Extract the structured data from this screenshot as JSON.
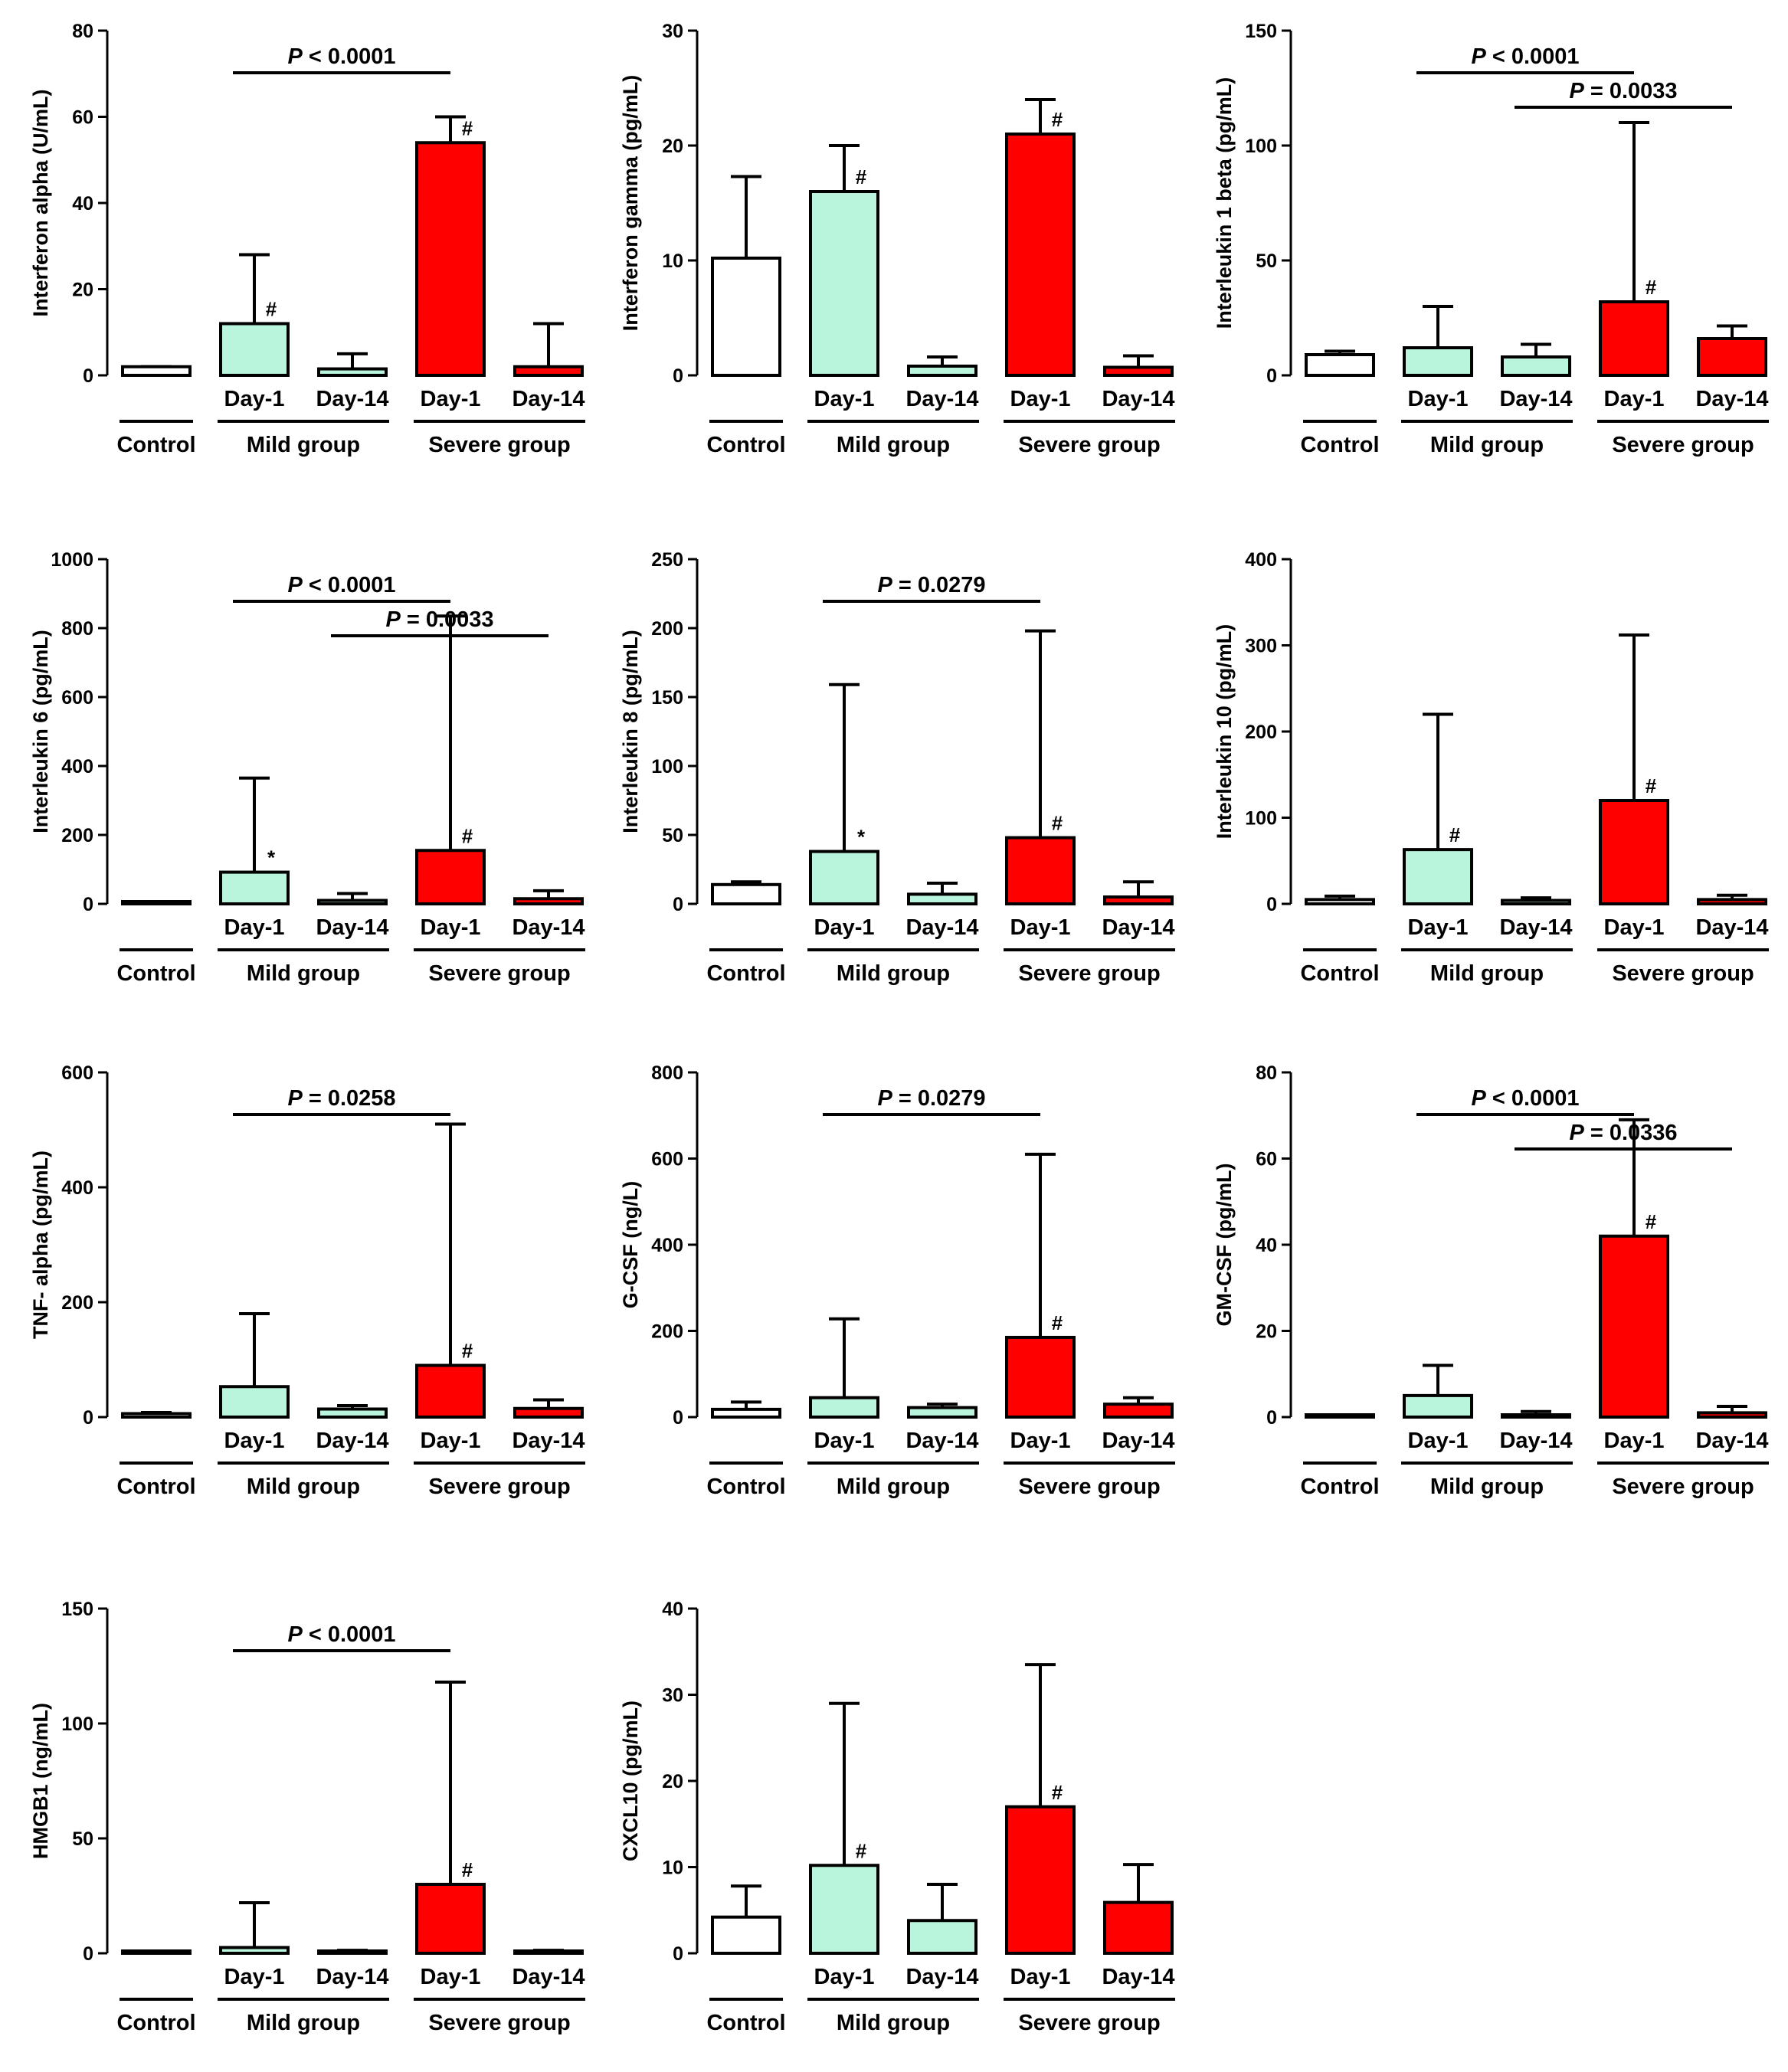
{
  "colors": {
    "control": "#ffffff",
    "mild": "#b9f5dc",
    "severe": "#ff0000",
    "stroke": "#000000"
  },
  "chart_data": [
    {
      "type": "bar",
      "ylabel": "Interferon alpha (U/mL)",
      "ylim": [
        0,
        80
      ],
      "yticks": [
        0,
        20,
        40,
        60,
        80
      ],
      "categories": [
        "Control",
        "Day-1",
        "Day-14",
        "Day-1",
        "Day-14"
      ],
      "groups": [
        "Control",
        "Mild group",
        "Severe group"
      ],
      "values": [
        2,
        12,
        1.5,
        54,
        2
      ],
      "errors": [
        2,
        28,
        5,
        60,
        12
      ],
      "markers": [
        "",
        "#",
        "",
        "#",
        ""
      ],
      "pvalues": [
        {
          "text": "P < 0.0001",
          "from": 1,
          "to": 3
        }
      ]
    },
    {
      "type": "bar",
      "ylabel": "Interferon gamma (pg/mL)",
      "ylim": [
        0,
        30
      ],
      "yticks": [
        0,
        10,
        20,
        30
      ],
      "categories": [
        "Control",
        "Day-1",
        "Day-14",
        "Day-1",
        "Day-14"
      ],
      "groups": [
        "Control",
        "Mild group",
        "Severe group"
      ],
      "values": [
        10.2,
        16,
        0.8,
        21,
        0.7
      ],
      "errors": [
        17.3,
        20,
        1.6,
        24,
        1.7
      ],
      "markers": [
        "",
        "#",
        "",
        "#",
        ""
      ],
      "pvalues": []
    },
    {
      "type": "bar",
      "ylabel": "Interleukin 1 beta (pg/mL)",
      "ylim": [
        0,
        150
      ],
      "yticks": [
        0,
        50,
        100,
        150
      ],
      "categories": [
        "Control",
        "Day-1",
        "Day-14",
        "Day-1",
        "Day-14"
      ],
      "groups": [
        "Control",
        "Mild group",
        "Severe group"
      ],
      "values": [
        9,
        12,
        8,
        32,
        16
      ],
      "errors": [
        10.5,
        30,
        13.5,
        110,
        21.5
      ],
      "markers": [
        "",
        "",
        "",
        "#",
        ""
      ],
      "pvalues": [
        {
          "text": "P < 0.0001",
          "from": 1,
          "to": 3
        },
        {
          "text": "P = 0.0033",
          "from": 2,
          "to": 4
        }
      ]
    },
    {
      "type": "bar",
      "ylabel": "Interleukin 6 (pg/mL)",
      "ylim": [
        0,
        1000
      ],
      "yticks": [
        0,
        200,
        400,
        600,
        800,
        1000
      ],
      "categories": [
        "Control",
        "Day-1",
        "Day-14",
        "Day-1",
        "Day-14"
      ],
      "groups": [
        "Control",
        "Mild group",
        "Severe group"
      ],
      "values": [
        3,
        92,
        10,
        155,
        15
      ],
      "errors": [
        5,
        365,
        30,
        835,
        38
      ],
      "markers": [
        "",
        "*",
        "",
        "#",
        ""
      ],
      "pvalues": [
        {
          "text": "P < 0.0001",
          "from": 1,
          "to": 3
        },
        {
          "text": "P = 0.0033",
          "from": 2,
          "to": 4
        }
      ]
    },
    {
      "type": "bar",
      "ylabel": "Interleukin 8 (pg/mL)",
      "ylim": [
        0,
        250
      ],
      "yticks": [
        0,
        50,
        100,
        150,
        200,
        250
      ],
      "categories": [
        "Control",
        "Day-1",
        "Day-14",
        "Day-1",
        "Day-14"
      ],
      "groups": [
        "Control",
        "Mild group",
        "Severe group"
      ],
      "values": [
        14,
        38,
        7,
        48,
        5
      ],
      "errors": [
        16,
        159,
        15,
        198,
        16
      ],
      "markers": [
        "",
        "*",
        "",
        "#",
        ""
      ],
      "pvalues": [
        {
          "text": "P = 0.0279",
          "from": 1,
          "to": 3
        }
      ]
    },
    {
      "type": "bar",
      "ylabel": "Interleukin 10 (pg/mL)",
      "ylim": [
        0,
        400
      ],
      "yticks": [
        0,
        100,
        200,
        300,
        400
      ],
      "categories": [
        "Control",
        "Day-1",
        "Day-14",
        "Day-1",
        "Day-14"
      ],
      "groups": [
        "Control",
        "Mild group",
        "Severe group"
      ],
      "values": [
        5,
        63,
        4,
        120,
        5
      ],
      "errors": [
        9,
        220,
        7,
        312,
        10
      ],
      "markers": [
        "",
        "#",
        "",
        "#",
        ""
      ],
      "pvalues": []
    },
    {
      "type": "bar",
      "ylabel": "TNF- alpha (pg/mL)",
      "ylim": [
        0,
        600
      ],
      "yticks": [
        0,
        200,
        400,
        600
      ],
      "categories": [
        "Control",
        "Day-1",
        "Day-14",
        "Day-1",
        "Day-14"
      ],
      "groups": [
        "Control",
        "Mild group",
        "Severe group"
      ],
      "values": [
        6,
        53,
        14,
        90,
        15
      ],
      "errors": [
        8,
        180,
        20,
        510,
        30
      ],
      "markers": [
        "",
        "",
        "",
        "#",
        ""
      ],
      "pvalues": [
        {
          "text": "P = 0.0258",
          "from": 1,
          "to": 3
        }
      ]
    },
    {
      "type": "bar",
      "ylabel": "G-CSF (ng/L)",
      "ylim": [
        0,
        800
      ],
      "yticks": [
        0,
        200,
        400,
        600,
        800
      ],
      "categories": [
        "Control",
        "Day-1",
        "Day-14",
        "Day-1",
        "Day-14"
      ],
      "groups": [
        "Control",
        "Mild group",
        "Severe group"
      ],
      "values": [
        18,
        45,
        22,
        185,
        30
      ],
      "errors": [
        35,
        228,
        30,
        610,
        45
      ],
      "markers": [
        "",
        "",
        "",
        "#",
        ""
      ],
      "pvalues": [
        {
          "text": "P = 0.0279",
          "from": 1,
          "to": 3
        }
      ]
    },
    {
      "type": "bar",
      "ylabel": "GM-CSF (pg/mL)",
      "ylim": [
        0,
        80
      ],
      "yticks": [
        0,
        20,
        40,
        60,
        80
      ],
      "categories": [
        "Control",
        "Day-1",
        "Day-14",
        "Day-1",
        "Day-14"
      ],
      "groups": [
        "Control",
        "Mild group",
        "Severe group"
      ],
      "values": [
        0.3,
        5,
        0.5,
        42,
        1
      ],
      "errors": [
        0.5,
        12,
        1.3,
        69,
        2.5
      ],
      "markers": [
        "",
        "",
        "",
        "#",
        ""
      ],
      "pvalues": [
        {
          "text": "P < 0.0001",
          "from": 1,
          "to": 3
        },
        {
          "text": "P = 0.0336",
          "from": 2,
          "to": 4
        }
      ]
    },
    {
      "type": "bar",
      "ylabel": "HMGB1 (ng/mL)",
      "ylim": [
        0,
        150
      ],
      "yticks": [
        0,
        50,
        100,
        150
      ],
      "categories": [
        "Control",
        "Day-1",
        "Day-14",
        "Day-1",
        "Day-14"
      ],
      "groups": [
        "Control",
        "Mild group",
        "Severe group"
      ],
      "values": [
        0.3,
        2.5,
        0.5,
        30,
        0.5
      ],
      "errors": [
        0.6,
        22,
        1.3,
        118,
        1.3
      ],
      "markers": [
        "",
        "",
        "",
        "#",
        ""
      ],
      "pvalues": [
        {
          "text": "P < 0.0001",
          "from": 1,
          "to": 3
        }
      ]
    },
    {
      "type": "bar",
      "ylabel": "CXCL10 (pg/mL)",
      "ylim": [
        0,
        40
      ],
      "yticks": [
        0,
        10,
        20,
        30,
        40
      ],
      "categories": [
        "Control",
        "Day-1",
        "Day-14",
        "Day-1",
        "Day-14"
      ],
      "groups": [
        "Control",
        "Mild group",
        "Severe group"
      ],
      "values": [
        4.2,
        10.2,
        3.8,
        17,
        5.9
      ],
      "errors": [
        7.8,
        29,
        8,
        33.5,
        10.3
      ],
      "markers": [
        "",
        "#",
        "",
        "#",
        ""
      ],
      "pvalues": []
    }
  ]
}
